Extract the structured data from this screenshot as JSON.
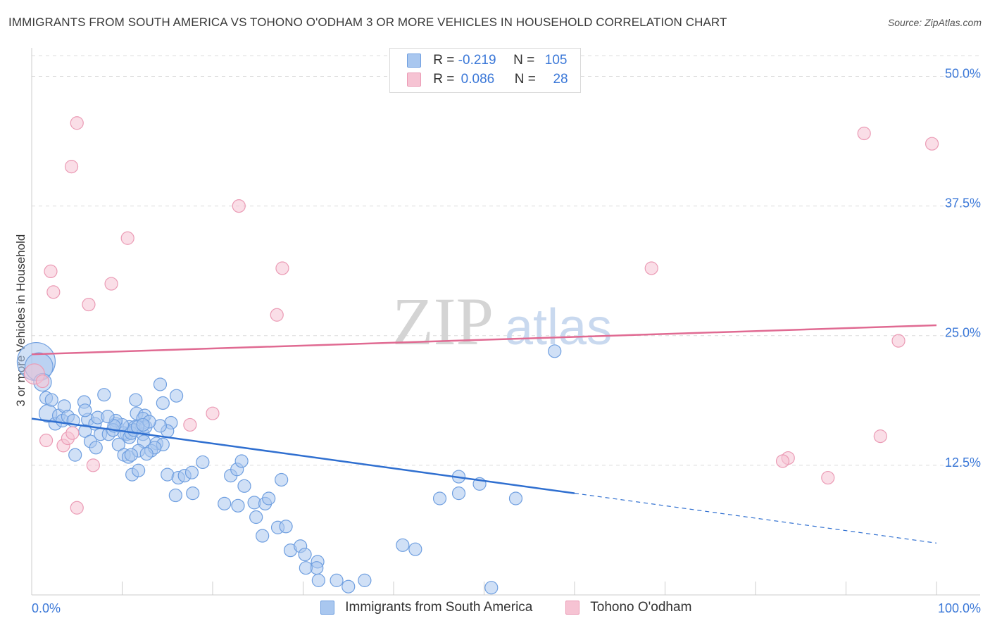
{
  "title": "IMMIGRANTS FROM SOUTH AMERICA VS TOHONO O'ODHAM 3 OR MORE VEHICLES IN HOUSEHOLD CORRELATION CHART",
  "source": "Source: ZipAtlas.com",
  "watermark": {
    "zip": "ZIP",
    "atlas": "atlas"
  },
  "legend": {
    "series1": {
      "r_label": "R =",
      "r_value": "-0.219",
      "n_label": "N =",
      "n_value": "105"
    },
    "series2": {
      "r_label": "R =",
      "r_value": "0.086",
      "n_label": "N =",
      "n_value": "28"
    }
  },
  "colors": {
    "blue_fill": "#a9c7ef",
    "blue_stroke": "#6f9fe0",
    "blue_line": "#2f6fd0",
    "pink_fill": "#f6c3d3",
    "pink_stroke": "#eb9bb5",
    "pink_line": "#e06a92",
    "tick_label": "#3b78d8",
    "grid": "#dcdcdc"
  },
  "chart_data": {
    "type": "scatter",
    "title": "IMMIGRANTS FROM SOUTH AMERICA VS TOHONO O'ODHAM 3 OR MORE VEHICLES IN HOUSEHOLD CORRELATION CHART",
    "xlabel": "",
    "ylabel": "3 or more Vehicles in Household",
    "xlim": [
      0,
      100
    ],
    "ylim": [
      0,
      52
    ],
    "x_tick_labels": [
      "0.0%",
      "100.0%"
    ],
    "y_ticks": [
      12.5,
      25.0,
      37.5,
      50.0
    ],
    "y_tick_labels": [
      "12.5%",
      "25.0%",
      "37.5%",
      "50.0%"
    ],
    "series": [
      {
        "name": "Immigrants from South America",
        "color": "#a9c7ef",
        "trend": {
          "x0": 0,
          "y0": 17.0,
          "x1": 100,
          "y1": 5.0,
          "solid_until": 60
        },
        "points": [
          [
            0.5,
            22.5,
            3
          ],
          [
            0.8,
            22,
            2.2
          ],
          [
            1.2,
            20.5,
            1.4
          ],
          [
            1.6,
            19,
            1
          ],
          [
            1.8,
            17.5,
            1.4
          ],
          [
            2.2,
            18.8,
            1
          ],
          [
            2.6,
            16.5,
            1
          ],
          [
            3,
            17.3,
            1
          ],
          [
            3.4,
            16.8,
            1
          ],
          [
            3.6,
            18.2,
            1
          ],
          [
            4,
            17.2,
            1
          ],
          [
            4.6,
            16.8,
            1
          ],
          [
            5.8,
            18.6,
            1
          ],
          [
            6.2,
            16.9,
            1
          ],
          [
            7,
            16.5,
            1
          ],
          [
            5.9,
            17.8,
            1
          ],
          [
            4.8,
            13.5,
            1
          ],
          [
            5.9,
            15.8,
            1
          ],
          [
            6.5,
            14.8,
            1
          ],
          [
            7.3,
            17.1,
            1
          ],
          [
            7.6,
            15.5,
            1
          ],
          [
            8,
            19.3,
            1
          ],
          [
            8.5,
            15.5,
            1
          ],
          [
            9.3,
            16.5,
            1
          ],
          [
            9.6,
            14.5,
            1
          ],
          [
            10.5,
            15.5,
            1
          ],
          [
            10.8,
            16.2,
            1
          ],
          [
            11.5,
            18.8,
            1
          ],
          [
            11.6,
            17.5,
            1
          ],
          [
            11.4,
            16.2,
            1
          ],
          [
            10.2,
            15.6,
            1
          ],
          [
            10.8,
            15.2,
            1
          ],
          [
            10,
            16.4,
            1
          ],
          [
            9.3,
            16.8,
            1
          ],
          [
            9,
            15.9,
            1
          ],
          [
            9.1,
            16.3,
            1
          ],
          [
            8.4,
            17.2,
            1
          ],
          [
            12.5,
            17.3,
            1
          ],
          [
            12.3,
            17,
            1
          ],
          [
            10.2,
            13.5,
            1
          ],
          [
            10.7,
            13.3,
            1
          ],
          [
            11,
            15.6,
            1
          ],
          [
            11.3,
            15.9,
            1
          ],
          [
            12.3,
            15.5,
            1
          ],
          [
            15.4,
            16.6,
            1
          ],
          [
            15,
            15.8,
            1
          ],
          [
            12.6,
            16.2,
            1
          ],
          [
            13.8,
            14.6,
            1
          ],
          [
            14.2,
            16.3,
            1
          ],
          [
            14.5,
            14.5,
            1
          ],
          [
            13,
            16.7,
            1
          ],
          [
            12.4,
            14.8,
            1
          ],
          [
            11.7,
            16.2,
            1
          ],
          [
            13.2,
            13.9,
            1
          ],
          [
            13.6,
            14.2,
            1
          ],
          [
            12.3,
            16.4,
            1
          ],
          [
            11.8,
            13.9,
            1
          ],
          [
            11,
            13.5,
            1
          ],
          [
            12.7,
            13.6,
            1
          ],
          [
            11.1,
            11.6,
            1
          ],
          [
            11.8,
            12,
            1
          ],
          [
            15,
            11.6,
            1
          ],
          [
            15.9,
            9.6,
            1
          ],
          [
            16.2,
            11.3,
            1
          ],
          [
            16.9,
            11.5,
            1
          ],
          [
            17.7,
            11.8,
            1
          ],
          [
            18.9,
            12.8,
            1
          ],
          [
            17.8,
            9.8,
            1
          ],
          [
            22,
            11.5,
            1
          ],
          [
            22.7,
            12.1,
            1
          ],
          [
            23.5,
            10.5,
            1
          ],
          [
            23.2,
            12.9,
            1
          ],
          [
            21.3,
            8.8,
            1
          ],
          [
            22.8,
            8.6,
            1
          ],
          [
            24.6,
            8.9,
            1
          ],
          [
            24.8,
            7.5,
            1
          ],
          [
            27.6,
            11.1,
            1
          ],
          [
            25.8,
            8.8,
            1
          ],
          [
            26.2,
            9.3,
            1
          ],
          [
            27.2,
            6.5,
            1
          ],
          [
            28.1,
            6.6,
            1
          ],
          [
            28.6,
            4.3,
            1
          ],
          [
            29.7,
            4.7,
            1
          ],
          [
            30.2,
            3.9,
            1
          ],
          [
            31.6,
            3.2,
            1
          ],
          [
            31.5,
            2.6,
            1
          ],
          [
            30.3,
            2.6,
            1
          ],
          [
            31.7,
            1.4,
            1
          ],
          [
            33.7,
            1.4,
            1
          ],
          [
            35,
            0.8,
            1
          ],
          [
            36.8,
            1.4,
            1
          ],
          [
            41,
            4.8,
            1
          ],
          [
            42.4,
            4.4,
            1
          ],
          [
            45.1,
            9.3,
            1
          ],
          [
            47.2,
            9.8,
            1
          ],
          [
            47.2,
            11.4,
            1
          ],
          [
            49.5,
            10.7,
            1
          ],
          [
            53.5,
            9.3,
            1
          ],
          [
            57.8,
            23.5,
            1
          ],
          [
            50.8,
            0.7,
            1
          ],
          [
            25.5,
            5.7,
            1
          ],
          [
            7.1,
            14.2,
            1
          ],
          [
            14.5,
            18.5,
            1
          ],
          [
            14.2,
            20.3,
            1
          ],
          [
            16,
            19.2,
            1
          ]
        ]
      },
      {
        "name": "Tohono O'odham",
        "color": "#f6c3d3",
        "trend": {
          "x0": 0,
          "y0": 23.2,
          "x1": 100,
          "y1": 26.0,
          "solid_until": 100
        },
        "points": [
          [
            0.3,
            21.3,
            1.6
          ],
          [
            5,
            45.5,
            1
          ],
          [
            4.4,
            41.3,
            1
          ],
          [
            2.1,
            31.2,
            1
          ],
          [
            2.4,
            29.2,
            1
          ],
          [
            6.3,
            28,
            1
          ],
          [
            8.8,
            30,
            1
          ],
          [
            1.2,
            20.6,
            1
          ],
          [
            1.6,
            14.9,
            1
          ],
          [
            3.5,
            14.4,
            1
          ],
          [
            4,
            15.1,
            1
          ],
          [
            4.5,
            15.6,
            1
          ],
          [
            6.8,
            12.5,
            1
          ],
          [
            5,
            8.4,
            1
          ],
          [
            10.6,
            34.4,
            1
          ],
          [
            22.9,
            37.5,
            1
          ],
          [
            27.7,
            31.5,
            1
          ],
          [
            27.1,
            27,
            1
          ],
          [
            20,
            17.5,
            1
          ],
          [
            17.5,
            16.4,
            1
          ],
          [
            68.5,
            31.5,
            1
          ],
          [
            83.6,
            13.2,
            1
          ],
          [
            93.8,
            15.3,
            1
          ],
          [
            95.8,
            24.5,
            1
          ],
          [
            99.5,
            43.5,
            1
          ],
          [
            92,
            44.5,
            1
          ],
          [
            88,
            11.3,
            1
          ],
          [
            83,
            12.9,
            1
          ]
        ]
      }
    ]
  },
  "bottom_legend": {
    "series1": "Immigrants from South America",
    "series2": "Tohono O'odham"
  }
}
